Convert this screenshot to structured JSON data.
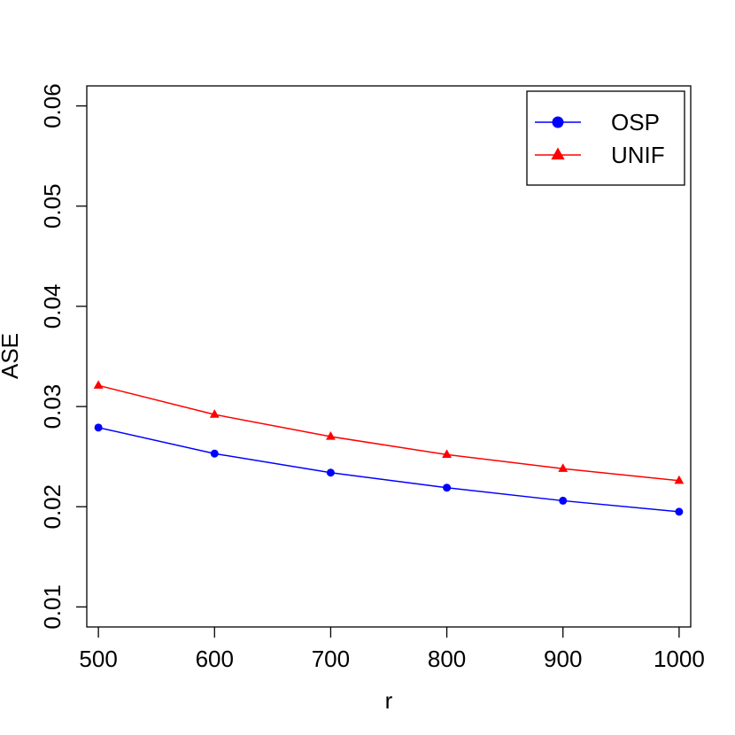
{
  "chart_data": {
    "type": "line",
    "title": "",
    "xlabel": "r",
    "ylabel": "ASE",
    "x": [
      500,
      600,
      700,
      800,
      900,
      1000
    ],
    "xlim": [
      490,
      1010
    ],
    "ylim": [
      0.008,
      0.062
    ],
    "x_ticks": [
      500,
      600,
      700,
      800,
      900,
      1000
    ],
    "x_tick_labels": [
      "500",
      "600",
      "700",
      "800",
      "900",
      "1000"
    ],
    "y_ticks": [
      0.01,
      0.02,
      0.03,
      0.04,
      0.05,
      0.06
    ],
    "y_tick_labels": [
      "0.01",
      "0.02",
      "0.03",
      "0.04",
      "0.05",
      "0.06"
    ],
    "grid": false,
    "legend_position": "top-right",
    "series": [
      {
        "name": "OSP",
        "color": "#0000ff",
        "marker": "circle",
        "values": [
          0.0279,
          0.0253,
          0.0234,
          0.0219,
          0.0206,
          0.0195
        ]
      },
      {
        "name": "UNIF",
        "color": "#ff0000",
        "marker": "triangle",
        "values": [
          0.0321,
          0.0292,
          0.027,
          0.0252,
          0.0238,
          0.0226
        ]
      }
    ]
  }
}
